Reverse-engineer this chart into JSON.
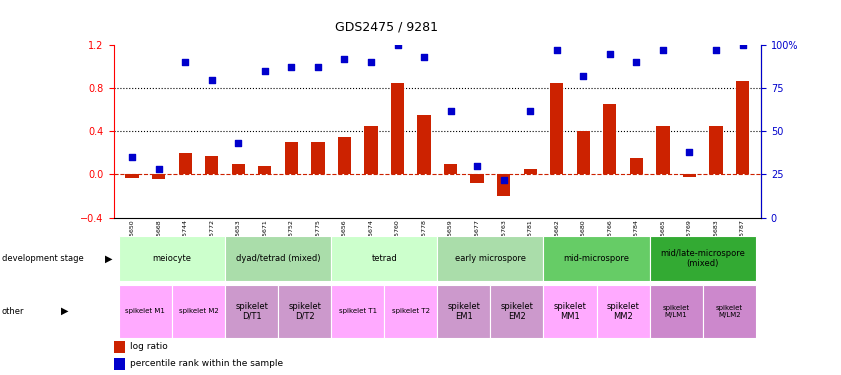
{
  "title": "GDS2475 / 9281",
  "samples": [
    "GSM75650",
    "GSM75668",
    "GSM75744",
    "GSM75772",
    "GSM75653",
    "GSM75671",
    "GSM75752",
    "GSM75775",
    "GSM75656",
    "GSM75674",
    "GSM75760",
    "GSM75778",
    "GSM75659",
    "GSM75677",
    "GSM75763",
    "GSM75781",
    "GSM75662",
    "GSM75680",
    "GSM75766",
    "GSM75784",
    "GSM75665",
    "GSM75769",
    "GSM75683",
    "GSM75787"
  ],
  "log_ratio": [
    -0.03,
    -0.04,
    0.2,
    0.17,
    0.1,
    0.08,
    0.3,
    0.3,
    0.35,
    0.45,
    0.85,
    0.55,
    0.1,
    -0.08,
    -0.2,
    0.05,
    0.85,
    0.4,
    0.65,
    0.15,
    0.45,
    -0.02,
    0.45,
    0.87
  ],
  "percentile": [
    35,
    28,
    90,
    80,
    43,
    85,
    87,
    87,
    92,
    90,
    100,
    93,
    62,
    30,
    22,
    62,
    97,
    82,
    95,
    90,
    97,
    38,
    97,
    100
  ],
  "ylim_left": [
    -0.4,
    1.2
  ],
  "ylim_right": [
    0,
    100
  ],
  "yticks_left": [
    -0.4,
    0.0,
    0.4,
    0.8,
    1.2
  ],
  "yticks_right": [
    0,
    25,
    50,
    75,
    100
  ],
  "hlines": [
    0.4,
    0.8
  ],
  "bar_color": "#cc2200",
  "dot_color": "#0000cc",
  "zeroline_color": "#cc2200",
  "background_color": "#ffffff",
  "dev_stage_groups": [
    {
      "label": "meiocyte",
      "start": 0,
      "end": 4,
      "color": "#ccffcc"
    },
    {
      "label": "dyad/tetrad (mixed)",
      "start": 4,
      "end": 8,
      "color": "#aaddaa"
    },
    {
      "label": "tetrad",
      "start": 8,
      "end": 12,
      "color": "#ccffcc"
    },
    {
      "label": "early microspore",
      "start": 12,
      "end": 16,
      "color": "#aaddaa"
    },
    {
      "label": "mid-microspore",
      "start": 16,
      "end": 20,
      "color": "#66cc66"
    },
    {
      "label": "mid/late-microspore\n(mixed)",
      "start": 20,
      "end": 24,
      "color": "#33aa33"
    }
  ],
  "other_groups": [
    {
      "label": "spikelet M1",
      "start": 0,
      "end": 2,
      "color": "#ffaaff",
      "fontsize": 5
    },
    {
      "label": "spikelet M2",
      "start": 2,
      "end": 4,
      "color": "#ffaaff",
      "fontsize": 5
    },
    {
      "label": "spikelet\nD/T1",
      "start": 4,
      "end": 6,
      "color": "#cc99cc",
      "fontsize": 6
    },
    {
      "label": "spikelet\nD/T2",
      "start": 6,
      "end": 8,
      "color": "#cc99cc",
      "fontsize": 6
    },
    {
      "label": "spikelet T1",
      "start": 8,
      "end": 10,
      "color": "#ffaaff",
      "fontsize": 5
    },
    {
      "label": "spikelet T2",
      "start": 10,
      "end": 12,
      "color": "#ffaaff",
      "fontsize": 5
    },
    {
      "label": "spikelet\nEM1",
      "start": 12,
      "end": 14,
      "color": "#cc99cc",
      "fontsize": 6
    },
    {
      "label": "spikelet\nEM2",
      "start": 14,
      "end": 16,
      "color": "#cc99cc",
      "fontsize": 6
    },
    {
      "label": "spikelet\nMM1",
      "start": 16,
      "end": 18,
      "color": "#ffaaff",
      "fontsize": 6
    },
    {
      "label": "spikelet\nMM2",
      "start": 18,
      "end": 20,
      "color": "#ffaaff",
      "fontsize": 6
    },
    {
      "label": "spikelet\nM/LM1",
      "start": 20,
      "end": 22,
      "color": "#cc88cc",
      "fontsize": 5
    },
    {
      "label": "spikelet\nM/LM2",
      "start": 22,
      "end": 24,
      "color": "#cc88cc",
      "fontsize": 5
    }
  ],
  "legend_items": [
    {
      "label": "log ratio",
      "color": "#cc2200"
    },
    {
      "label": "percentile rank within the sample",
      "color": "#0000cc"
    }
  ]
}
